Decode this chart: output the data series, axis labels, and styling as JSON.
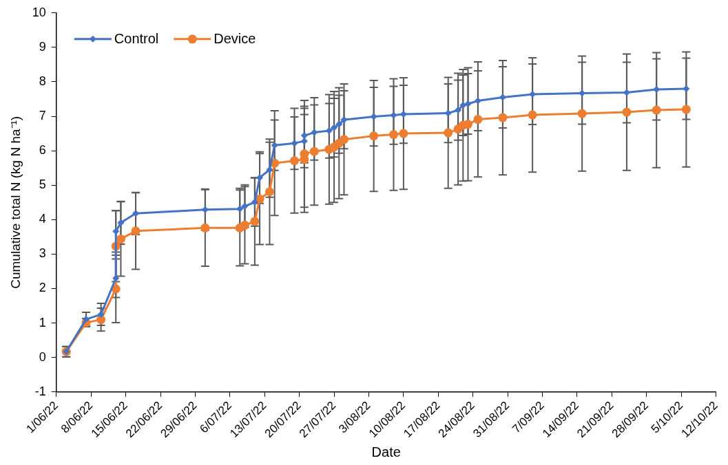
{
  "chart_data": {
    "type": "line",
    "xlabel": "Date",
    "ylabel": "Cumulative total N (kg N ha⁻¹)",
    "x": [
      "--06-03",
      "--06-07",
      "--06-10",
      "--06-13",
      "--06-13",
      "--06-14",
      "--06-17",
      "--07-01",
      "--07-08",
      "--07-09",
      "--07-11",
      "--07-12",
      "--07-14",
      "--07-15",
      "--07-19",
      "--07-21",
      "--07-21",
      "--07-23",
      "--07-26",
      "--07-27",
      "--07-28",
      "--07-29",
      "--08-04",
      "--08-08",
      "--08-10",
      "--08-19",
      "--08-21",
      "--08-22",
      "--08-23",
      "--08-25",
      "--08-30",
      "--09-05",
      "--09-15",
      "--09-24",
      "--09-30",
      "--10-06"
    ],
    "series": [
      {
        "name": "Control",
        "color": "#4472c4",
        "marker": "diamond",
        "values": [
          0.17,
          1.11,
          1.25,
          2.3,
          3.66,
          3.91,
          4.18,
          4.29,
          4.31,
          4.39,
          4.51,
          5.22,
          5.45,
          6.16,
          6.22,
          6.28,
          6.44,
          6.53,
          6.58,
          6.67,
          6.77,
          6.9,
          6.99,
          7.03,
          7.06,
          7.09,
          7.18,
          7.32,
          7.36,
          7.45,
          7.55,
          7.64,
          7.67,
          7.69,
          7.78,
          7.8
        ],
        "errors": [
          0.15,
          0.2,
          0.32,
          0.56,
          0.6,
          0.62,
          0.61,
          0.6,
          0.6,
          0.62,
          0.7,
          0.75,
          0.8,
          0.73,
          0.76,
          0.77,
          0.79,
          0.8,
          0.79,
          0.85,
          0.84,
          0.84,
          0.85,
          0.84,
          0.84,
          0.85,
          0.87,
          0.88,
          0.88,
          0.87,
          0.89,
          0.88,
          0.9,
          0.88,
          0.89,
          0.89
        ]
      },
      {
        "name": "Device",
        "color": "#ed7d31",
        "marker": "circle",
        "values": [
          0.17,
          1.01,
          1.1,
          1.99,
          3.23,
          3.44,
          3.67,
          3.76,
          3.76,
          3.84,
          3.95,
          4.6,
          4.81,
          5.64,
          5.71,
          5.75,
          5.91,
          5.98,
          6.04,
          6.11,
          6.22,
          6.33,
          6.43,
          6.47,
          6.5,
          6.52,
          6.63,
          6.74,
          6.77,
          6.91,
          6.96,
          7.04,
          7.08,
          7.12,
          7.18,
          7.2
        ],
        "errors": [
          0.15,
          0.12,
          0.33,
          0.98,
          1.03,
          1.08,
          1.11,
          1.11,
          1.1,
          1.12,
          1.27,
          1.32,
          1.53,
          1.52,
          1.52,
          1.54,
          1.55,
          1.56,
          1.59,
          1.61,
          1.61,
          1.61,
          1.61,
          1.62,
          1.62,
          1.61,
          1.62,
          1.62,
          1.64,
          1.67,
          1.66,
          1.66,
          1.67,
          1.69,
          1.67,
          1.67
        ]
      }
    ],
    "xlim": [
      "--06-01",
      "--10-12"
    ],
    "xticks": [
      {
        "value": "--06-01",
        "label": "1/06/22"
      },
      {
        "value": "--06-08",
        "label": "8/06/22"
      },
      {
        "value": "--06-15",
        "label": "15/06/22"
      },
      {
        "value": "--06-22",
        "label": "22/06/22"
      },
      {
        "value": "--06-29",
        "label": "29/06/22"
      },
      {
        "value": "--07-06",
        "label": "6/07/22"
      },
      {
        "value": "--07-13",
        "label": "13/07/22"
      },
      {
        "value": "--07-20",
        "label": "20/07/22"
      },
      {
        "value": "--07-27",
        "label": "27/07/22"
      },
      {
        "value": "--08-03",
        "label": "3/08/22"
      },
      {
        "value": "--08-10",
        "label": "10/08/22"
      },
      {
        "value": "--08-17",
        "label": "17/08/22"
      },
      {
        "value": "--08-24",
        "label": "24/08/22"
      },
      {
        "value": "--08-31",
        "label": "31/08/22"
      },
      {
        "value": "--09-07",
        "label": "7/09/22"
      },
      {
        "value": "--09-14",
        "label": "14/09/22"
      },
      {
        "value": "--09-21",
        "label": "21/09/22"
      },
      {
        "value": "--09-28",
        "label": "28/09/22"
      },
      {
        "value": "--10-05",
        "label": "5/10/22"
      },
      {
        "value": "--10-12",
        "label": "12/10/22"
      }
    ],
    "ylim": [
      -1,
      10
    ],
    "yticks": [
      -1,
      0,
      1,
      2,
      3,
      4,
      5,
      6,
      7,
      8,
      9,
      10
    ],
    "grid": false,
    "legend": "top left",
    "line_style": "solid"
  }
}
